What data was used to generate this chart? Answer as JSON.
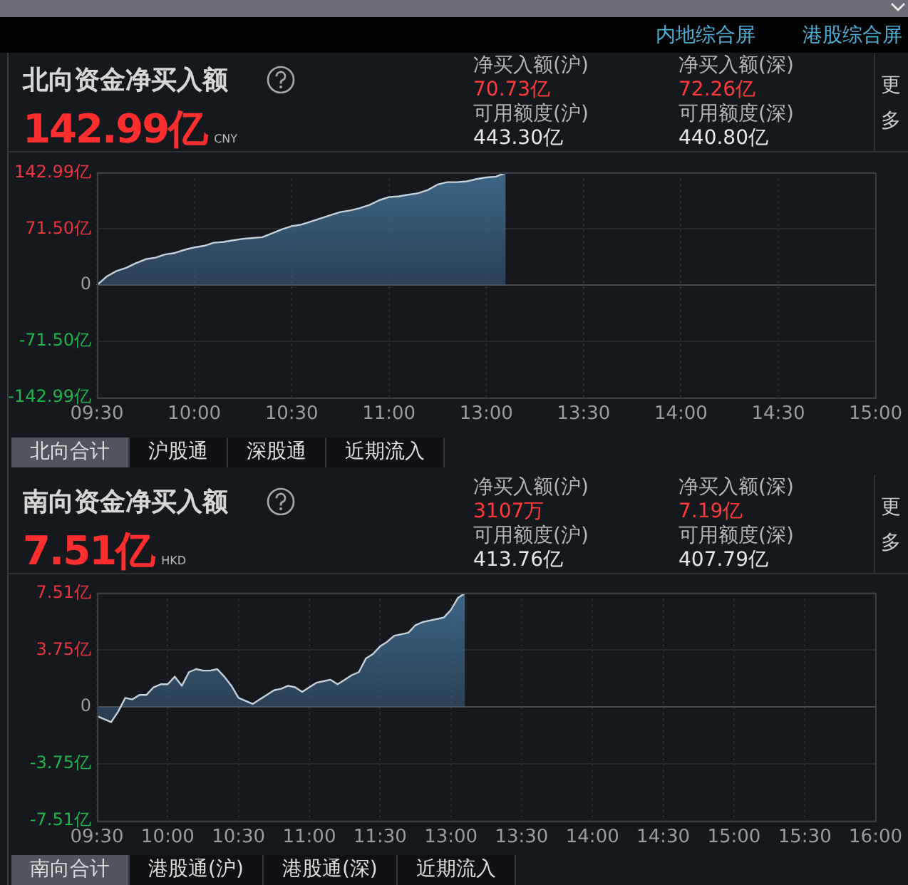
{
  "chart_data": [
    {
      "type": "area",
      "title": "北向资金净买入额",
      "subtitle": "142.99亿",
      "annotations": [
        "内地综合屏",
        "港股综合屏",
        "CNY",
        "净买入额(沪)",
        "70.73亿",
        "净买入额(深)",
        "72.26亿",
        "可用额度(沪)",
        "443.30亿",
        "可用额度(深)",
        "440.80亿",
        "更多",
        "北向合计",
        "沪股通",
        "深股通",
        "近期流入"
      ],
      "categories": [
        "09:30",
        null,
        null,
        null,
        null,
        null,
        null,
        null,
        null,
        null,
        "10:00",
        null,
        null,
        null,
        null,
        null,
        null,
        null,
        null,
        null,
        "10:30",
        null,
        null,
        null,
        null,
        null,
        null,
        null,
        null,
        null,
        "11:00",
        null,
        null,
        null,
        null,
        null,
        null,
        null,
        null,
        null,
        "13:00",
        null,
        null,
        null,
        null,
        null,
        null,
        null,
        null,
        null,
        "13:30",
        null,
        null,
        null,
        null,
        null,
        null,
        null,
        null,
        null,
        "14:00",
        null,
        null,
        null,
        null,
        null,
        null,
        null,
        null,
        null,
        "14:30",
        null,
        null,
        null,
        null,
        null,
        null,
        null,
        null,
        null,
        "15:00"
      ],
      "values": [
        0,
        11,
        18,
        22,
        28,
        33,
        35,
        39,
        41,
        45,
        48,
        50,
        54,
        55,
        57,
        59,
        60,
        61,
        66,
        71,
        75,
        77,
        81,
        85,
        89,
        93,
        95,
        98,
        102,
        108,
        112,
        113,
        115,
        117,
        121,
        128,
        131,
        131,
        132,
        135,
        137,
        138,
        142.99,
        null,
        null,
        null,
        null,
        null,
        null,
        null,
        null,
        null,
        null,
        null,
        null,
        null,
        null,
        null,
        null,
        null,
        null,
        null,
        null,
        null,
        null,
        null,
        null,
        null,
        null,
        null,
        null,
        null,
        null,
        null,
        null,
        null,
        null,
        null,
        null,
        null,
        null
      ],
      "color": "#3e6585",
      "marker": "none",
      "grid": true,
      "ylim": [
        -142.99,
        142.99
      ],
      "yticks": [
        {
          "value": 142.99,
          "label": "142.99亿"
        },
        {
          "value": 71.5,
          "label": "71.50亿"
        },
        0,
        {
          "value": -71.5,
          "label": "-71.50亿"
        },
        {
          "value": -142.99,
          "label": "-142.99亿"
        }
      ]
    },
    {
      "type": "area",
      "title": "南向资金净买入额",
      "subtitle": "7.51亿",
      "annotations": [
        "HKD",
        "净买入额(沪)",
        "3107万",
        "净买入额(深)",
        "7.19亿",
        "可用额度(沪)",
        "413.76亿",
        "可用额度(深)",
        "407.79亿",
        "更多",
        "南向合计",
        "港股通(沪)",
        "港股通(深)",
        "近期流入"
      ],
      "categories": [
        "09:30",
        null,
        null,
        null,
        null,
        null,
        null,
        null,
        null,
        null,
        "10:00",
        null,
        null,
        null,
        null,
        null,
        null,
        null,
        null,
        null,
        "10:30",
        null,
        null,
        null,
        null,
        null,
        null,
        null,
        null,
        null,
        "11:00",
        null,
        null,
        null,
        null,
        null,
        null,
        null,
        null,
        null,
        "11:30",
        null,
        null,
        null,
        null,
        null,
        null,
        null,
        null,
        null,
        "13:00",
        null,
        null,
        null,
        null,
        null,
        null,
        null,
        null,
        null,
        "13:30",
        null,
        null,
        null,
        null,
        null,
        null,
        null,
        null,
        null,
        "14:00",
        null,
        null,
        null,
        null,
        null,
        null,
        null,
        null,
        null,
        "14:30",
        null,
        null,
        null,
        null,
        null,
        null,
        null,
        null,
        null,
        "15:00",
        null,
        null,
        null,
        null,
        null,
        null,
        null,
        null,
        null,
        "15:30",
        null,
        null,
        null,
        null,
        null,
        null,
        null,
        null,
        null,
        "16:00"
      ],
      "values": [
        -0.6,
        -0.8,
        -1,
        -0.3,
        0.6,
        0.5,
        0.8,
        0.8,
        1.3,
        1.5,
        1.5,
        2,
        1.4,
        2.3,
        2.5,
        2.4,
        2.4,
        2.5,
        2,
        1.4,
        0.6,
        0.4,
        0.2,
        0.5,
        0.8,
        1.1,
        1.2,
        1.4,
        1.3,
        1,
        1.3,
        1.6,
        1.7,
        1.8,
        1.5,
        1.8,
        2.1,
        2.3,
        3.2,
        3.5,
        4,
        4.3,
        4.7,
        4.8,
        4.9,
        5.4,
        5.6,
        5.7,
        5.8,
        5.9,
        6.4,
        7.2,
        7.51,
        null,
        null,
        null,
        null,
        null,
        null,
        null,
        null,
        null,
        null,
        null,
        null,
        null,
        null,
        null,
        null,
        null,
        null,
        null,
        null,
        null,
        null,
        null,
        null,
        null,
        null,
        null,
        null,
        null,
        null,
        null,
        null,
        null,
        null,
        null,
        null,
        null,
        null,
        null,
        null,
        null,
        null,
        null,
        null,
        null,
        null,
        null,
        null,
        null,
        null,
        null,
        null,
        null,
        null,
        null,
        null,
        null,
        null
      ],
      "color": "#3e6585",
      "marker": "none",
      "grid": true,
      "ylim": [
        -7.51,
        7.51
      ],
      "yticks": [
        {
          "value": 7.51,
          "label": "7.51亿"
        },
        {
          "value": 3.75,
          "label": "3.75亿"
        },
        0,
        {
          "value": -3.75,
          "label": "-3.75亿"
        },
        {
          "value": -7.51,
          "label": "-7.51亿"
        }
      ]
    }
  ]
}
